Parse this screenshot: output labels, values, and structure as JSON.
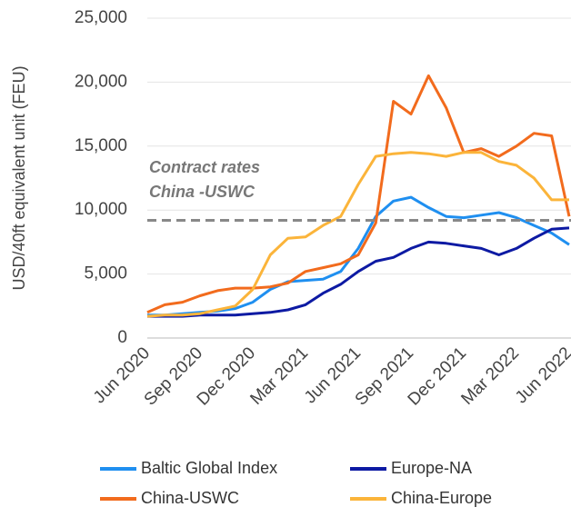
{
  "chart_data": {
    "type": "line",
    "y_label": "USD/40ft equivalent unit (FEU)",
    "categories": [
      "Jun 2020",
      null,
      null,
      "Sep 2020",
      null,
      null,
      "Dec 2020",
      null,
      null,
      "Mar 2021",
      null,
      null,
      "Jun 2021",
      null,
      null,
      "Sep 2021",
      null,
      null,
      "Dec 2021",
      null,
      null,
      "Mar 2022",
      null,
      null,
      "Jun 2022"
    ],
    "series": [
      {
        "name": "Baltic Global Index",
        "color": "#1f8ff0",
        "values": [
          1800,
          1800,
          1900,
          2000,
          2100,
          2300,
          2800,
          3800,
          4400,
          4500,
          4600,
          5200,
          7000,
          9500,
          10700,
          11000,
          10200,
          9500,
          9400,
          9600,
          9800,
          9400,
          8800,
          8200,
          7300
        ]
      },
      {
        "name": "Europe-NA",
        "color": "#0d1aa3",
        "values": [
          1700,
          1700,
          1700,
          1800,
          1800,
          1800,
          1900,
          2000,
          2200,
          2600,
          3500,
          4200,
          5200,
          6000,
          6300,
          7000,
          7500,
          7400,
          7200,
          7000,
          6500,
          7000,
          7800,
          8500,
          8600
        ]
      },
      {
        "name": "China-USWC",
        "color": "#f26b1d",
        "values": [
          2000,
          2600,
          2800,
          3300,
          3700,
          3900,
          3900,
          4000,
          4300,
          5200,
          5500,
          5800,
          6500,
          9000,
          18500,
          17500,
          20500,
          18000,
          14500,
          14800,
          14200,
          15000,
          16000,
          15800,
          9500
        ]
      },
      {
        "name": "China-Europe",
        "color": "#fbb43a",
        "values": [
          1700,
          1800,
          1800,
          1900,
          2200,
          2500,
          3800,
          6500,
          7800,
          7900,
          8800,
          9500,
          12000,
          14200,
          14400,
          14500,
          14400,
          14200,
          14500,
          14500,
          13800,
          13500,
          12500,
          10800,
          10800
        ]
      }
    ],
    "reference_line": {
      "value": 9200,
      "color": "#888888",
      "annotation": [
        "Contract rates",
        "China -USWC"
      ]
    },
    "ylim": [
      0,
      25000
    ],
    "yticks": [
      0,
      {
        "value": 5000,
        "label": "5,000"
      },
      {
        "value": 10000,
        "label": "10,000"
      },
      {
        "value": 15000,
        "label": "15,000"
      },
      {
        "value": 20000,
        "label": "20,000"
      },
      {
        "value": 25000,
        "label": "25,000"
      }
    ],
    "grid": true
  }
}
